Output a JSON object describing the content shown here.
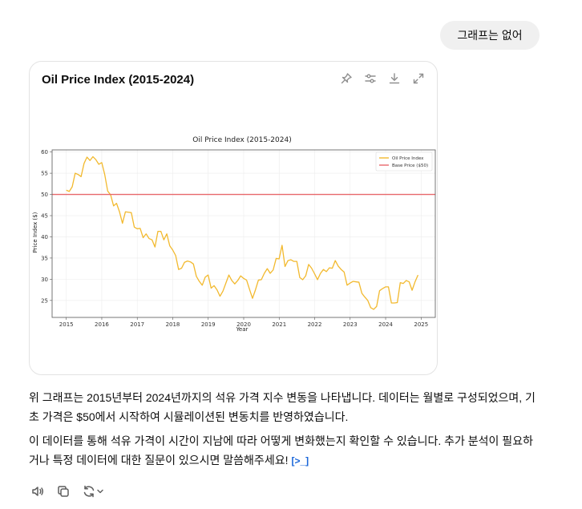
{
  "user_message": "그래프는 없어",
  "card": {
    "title": "Oil Price Index (2015-2024)",
    "tools": [
      "pin-icon",
      "settings-icon",
      "download-icon",
      "expand-icon"
    ]
  },
  "chart_data": {
    "type": "line",
    "title": "Oil Price Index (2015-2024)",
    "xlabel": "Year",
    "ylabel": "Price Index ($)",
    "xlim": [
      2014.6,
      2025.4
    ],
    "ylim": [
      21,
      60.5
    ],
    "xticks": [
      "2015",
      "2016",
      "2017",
      "2018",
      "2019",
      "2020",
      "2021",
      "2022",
      "2023",
      "2024",
      "2025"
    ],
    "yticks": [
      25,
      30,
      35,
      40,
      45,
      50,
      55,
      60
    ],
    "grid": true,
    "legend_position": "top-right",
    "series": [
      {
        "name": "Oil Price Index",
        "color": "#f2b92e",
        "x_start": 2015.0,
        "x_step": 0.0833,
        "values": [
          51,
          50.7,
          51.8,
          55,
          54.7,
          54.2,
          57.3,
          58.8,
          58,
          58.9,
          58.2,
          57.1,
          57.5,
          54.7,
          50.8,
          49.9,
          47.3,
          47.9,
          45.9,
          43.2,
          45.9,
          45.8,
          45.7,
          42.3,
          41.9,
          42,
          39.8,
          40.7,
          39.6,
          39.3,
          37.6,
          41.3,
          41.3,
          39.3,
          40.7,
          37.9,
          36.9,
          35.6,
          32.3,
          32.6,
          34,
          34.3,
          34.1,
          33.6,
          30.7,
          29.5,
          28.6,
          30.5,
          31,
          27.9,
          28.5,
          27.5,
          26,
          27.2,
          29.1,
          31,
          29.7,
          28.9,
          29.7,
          30.8,
          30.2,
          29.8,
          27.6,
          25.5,
          27.5,
          29.8,
          29.9,
          31.4,
          32.5,
          31.4,
          32.2,
          34.9,
          34.8,
          38,
          33,
          34.4,
          34.6,
          34.2,
          34.2,
          30.4,
          29.9,
          30.8,
          33.5,
          32.6,
          31.3,
          29.9,
          31.4,
          32.3,
          31.8,
          32.7,
          32.6,
          34.4,
          33.1,
          32.3,
          31.7,
          28.6,
          29.1,
          29.5,
          29.4,
          29.3,
          26.7,
          25.8,
          25,
          23.3,
          22.9,
          23.6,
          27.3,
          27.8,
          28.2,
          28.2,
          24.4,
          24.4,
          24.5,
          29.2,
          29,
          29.7,
          29.4,
          27.4,
          29.4,
          31
        ]
      },
      {
        "name": "Base Price ($50)",
        "color": "#e8676b",
        "constant": 50
      }
    ]
  },
  "reply": {
    "paragraph1": "위 그래프는 2015년부터 2024년까지의 석유 가격 지수 변동을 나타냅니다. 데이터는 월별로 구성되었으며, 기초 가격은 $50에서 시작하여 시뮬레이션된 변동치를 반영하였습니다.",
    "paragraph2": "이 데이터를 통해 석유 가격이 시간이 지남에 따라 어떻게 변화했는지 확인할 수 있습니다. 추가 분석이 필요하거나 특정 데이터에 대한 질문이 있으시면 말씀해주세요!",
    "citation": "[>_]"
  },
  "actions": [
    "read-aloud-icon",
    "copy-icon",
    "regenerate-icon"
  ]
}
